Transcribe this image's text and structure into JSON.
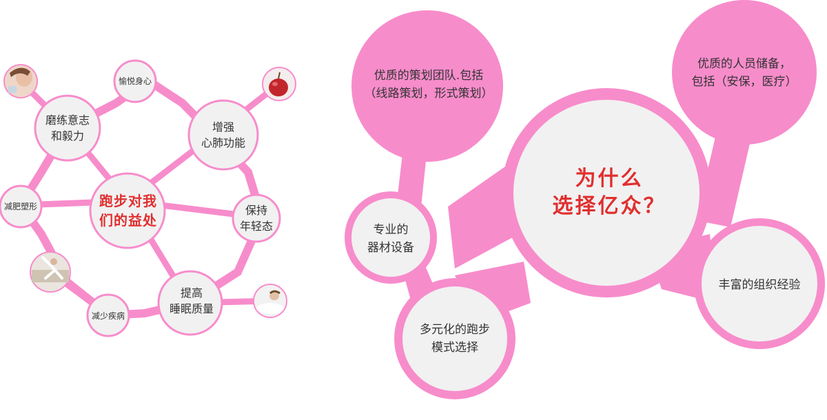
{
  "colors": {
    "pink": "#F78CCB",
    "hotpink": "#F45DB0",
    "light": "#F1F1F1",
    "white": "#FFFFFF",
    "text": "#333333",
    "red": "#E02F2F"
  },
  "benefits": {
    "title_lines": [
      "跑步对我",
      "们的益处"
    ],
    "nodes": [
      {
        "id": "yuyue",
        "lines": [
          "愉悦身心"
        ]
      },
      {
        "id": "molian",
        "lines": [
          "磨练意志",
          "和毅力"
        ]
      },
      {
        "id": "zengqiang",
        "lines": [
          "增强",
          "心肺功能"
        ]
      },
      {
        "id": "jianfei",
        "lines": [
          "减肥塑形"
        ]
      },
      {
        "id": "baochi",
        "lines": [
          "保持",
          "年轻态"
        ]
      },
      {
        "id": "tigao",
        "lines": [
          "提高",
          "睡眠质量"
        ]
      },
      {
        "id": "jianshao",
        "lines": [
          "减少疾病"
        ]
      }
    ],
    "photos": [
      {
        "id": "woman-face",
        "icon": "woman-portrait-icon"
      },
      {
        "id": "apple",
        "icon": "apple-icon"
      },
      {
        "id": "yoga",
        "icon": "yoga-pose-icon"
      },
      {
        "id": "sleeping",
        "icon": "sleeping-person-icon"
      }
    ]
  },
  "reasons": {
    "title_lines": [
      "为什么",
      "选择亿众？"
    ],
    "team": [
      "优质的策划团队.包括",
      "（线路策划，形式策划）"
    ],
    "staff": [
      "优质的人员储备，",
      "包括（安保，医疗）"
    ],
    "equipment": [
      "专业的",
      "器材设备"
    ],
    "modes": [
      "多元化的跑步",
      "模式选择"
    ],
    "experience": [
      "丰富的组织经验"
    ]
  }
}
